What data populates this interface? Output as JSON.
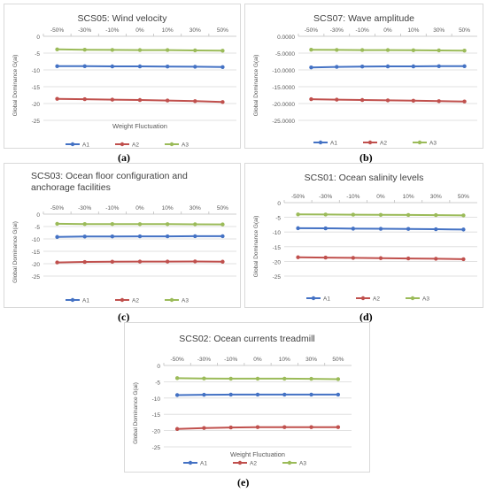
{
  "chart_data": [
    {
      "type": "line",
      "panel_label": "(a)",
      "title": "SCS05: Wind velocity",
      "xlabel": "Weight Fluctuation",
      "ylabel": "Global Dominance G(ai)",
      "categories": [
        "-50%",
        "-30%",
        "-10%",
        "0%",
        "10%",
        "30%",
        "50%"
      ],
      "y_ticks": [
        "0",
        "-5",
        "-10",
        "-15",
        "-20",
        "-25"
      ],
      "ylim": [
        -25,
        0
      ],
      "x_axis_position": "top",
      "legend_position": "bottom",
      "series": [
        {
          "name": "A1",
          "color": "#4472c4",
          "values": [
            -8.9,
            -8.9,
            -8.95,
            -8.95,
            -9.0,
            -9.05,
            -9.15
          ]
        },
        {
          "name": "A2",
          "color": "#c0504d",
          "values": [
            -18.6,
            -18.7,
            -18.85,
            -18.95,
            -19.1,
            -19.3,
            -19.55
          ]
        },
        {
          "name": "A3",
          "color": "#9bbb59",
          "values": [
            -3.9,
            -4.0,
            -4.05,
            -4.1,
            -4.1,
            -4.2,
            -4.3
          ]
        }
      ]
    },
    {
      "type": "line",
      "panel_label": "(b)",
      "title": "SCS07: Wave amplitude",
      "xlabel": "",
      "ylabel": "Global Dominance G(ai)",
      "categories": [
        "-50%",
        "-30%",
        "-10%",
        "0%",
        "10%",
        "30%",
        "50%"
      ],
      "y_ticks": [
        "0.0000",
        "-5.0000",
        "-10.0000",
        "-15.0000",
        "-20.0000",
        "-25.0000"
      ],
      "ylim": [
        -25,
        0
      ],
      "x_axis_position": "top",
      "legend_position": "bottom",
      "series": [
        {
          "name": "A1",
          "color": "#4472c4",
          "values": [
            -9.25,
            -9.1,
            -9.0,
            -8.95,
            -8.95,
            -8.9,
            -8.9
          ]
        },
        {
          "name": "A2",
          "color": "#c0504d",
          "values": [
            -18.7,
            -18.85,
            -18.95,
            -19.05,
            -19.15,
            -19.3,
            -19.4
          ]
        },
        {
          "name": "A3",
          "color": "#9bbb59",
          "values": [
            -4.0,
            -4.05,
            -4.1,
            -4.1,
            -4.15,
            -4.2,
            -4.25
          ]
        }
      ]
    },
    {
      "type": "line",
      "panel_label": "(c)",
      "title": "SCS03: Ocean floor configuration and anchorage facilities",
      "xlabel": "",
      "ylabel": "Global Dominance G(ai)",
      "categories": [
        "-50%",
        "-30%",
        "-10%",
        "0%",
        "10%",
        "30%",
        "50%"
      ],
      "y_ticks": [
        "0",
        "-5",
        "-10",
        "-15",
        "-20",
        "-25"
      ],
      "ylim": [
        -25,
        0
      ],
      "x_axis_position": "top",
      "legend_position": "bottom",
      "series": [
        {
          "name": "A1",
          "color": "#4472c4",
          "values": [
            -9.2,
            -9.05,
            -9.0,
            -8.95,
            -8.95,
            -8.9,
            -8.9
          ]
        },
        {
          "name": "A2",
          "color": "#c0504d",
          "values": [
            -19.5,
            -19.3,
            -19.2,
            -19.15,
            -19.15,
            -19.1,
            -19.2
          ]
        },
        {
          "name": "A3",
          "color": "#9bbb59",
          "values": [
            -3.9,
            -4.0,
            -4.0,
            -4.05,
            -4.05,
            -4.1,
            -4.15
          ]
        }
      ]
    },
    {
      "type": "line",
      "panel_label": "(d)",
      "title": "SCS01: Ocean salinity levels",
      "xlabel": "",
      "ylabel": "Global Dominance G(ai)",
      "categories": [
        "-50%",
        "-30%",
        "-10%",
        "0%",
        "10%",
        "30%",
        "50%"
      ],
      "y_ticks": [
        "0",
        "-5",
        "-10",
        "-15",
        "-20",
        "-25"
      ],
      "ylim": [
        -25,
        0
      ],
      "x_axis_position": "top",
      "legend_position": "bottom",
      "series": [
        {
          "name": "A1",
          "color": "#4472c4",
          "values": [
            -8.7,
            -8.75,
            -8.85,
            -8.9,
            -8.95,
            -9.05,
            -9.15
          ]
        },
        {
          "name": "A2",
          "color": "#c0504d",
          "values": [
            -18.6,
            -18.7,
            -18.8,
            -18.9,
            -19.0,
            -19.1,
            -19.25
          ]
        },
        {
          "name": "A3",
          "color": "#9bbb59",
          "values": [
            -4.0,
            -4.05,
            -4.1,
            -4.15,
            -4.2,
            -4.25,
            -4.35
          ]
        }
      ]
    },
    {
      "type": "line",
      "panel_label": "(e)",
      "title": "SCS02: Ocean currents treadmill",
      "xlabel": "Weight Fluctuation",
      "ylabel": "Global Dominance G(ai)",
      "categories": [
        "-50%",
        "-30%",
        "-10%",
        "0%",
        "10%",
        "30%",
        "50%"
      ],
      "y_ticks": [
        "0",
        "-5",
        "-10",
        "-15",
        "-20",
        "-25"
      ],
      "ylim": [
        -25,
        0
      ],
      "x_axis_position": "top",
      "legend_position": "bottom",
      "series": [
        {
          "name": "A1",
          "color": "#4472c4",
          "values": [
            -9.1,
            -9.0,
            -8.95,
            -8.95,
            -8.95,
            -8.95,
            -8.95
          ]
        },
        {
          "name": "A2",
          "color": "#c0504d",
          "values": [
            -19.5,
            -19.2,
            -19.05,
            -18.95,
            -18.95,
            -18.95,
            -18.95
          ]
        },
        {
          "name": "A3",
          "color": "#9bbb59",
          "values": [
            -3.9,
            -4.0,
            -4.05,
            -4.05,
            -4.05,
            -4.1,
            -4.2
          ]
        }
      ]
    }
  ]
}
